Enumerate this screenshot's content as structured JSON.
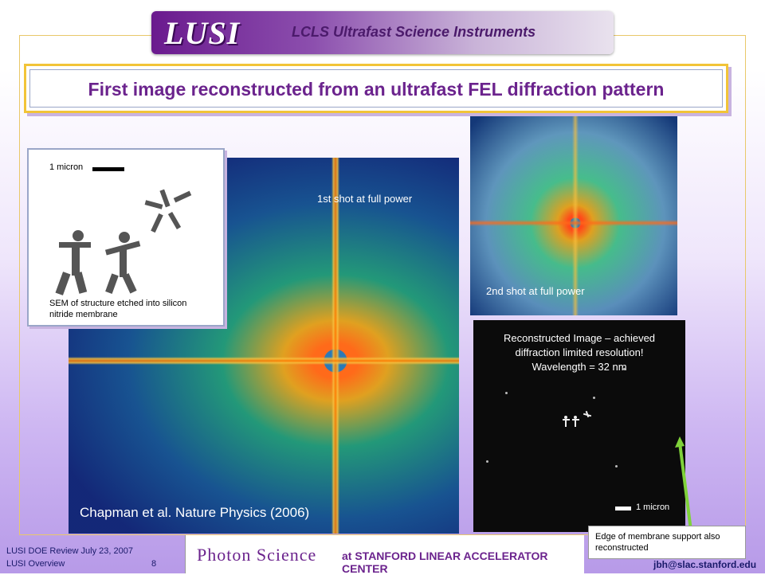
{
  "banner": {
    "logo": "LUSI",
    "subtitle": "LCLS Ultrafast Science Instruments"
  },
  "title": "First image reconstructed from an ultrafast FEL diffraction pattern",
  "main_image": {
    "caption_top": "1st shot at full power",
    "citation": "Chapman et al. Nature Physics (2006)"
  },
  "sem_inset": {
    "scale_label": "1 micron",
    "caption": "SEM of structure etched into silicon nitride membrane"
  },
  "second_image": {
    "caption": "2nd shot at full power"
  },
  "reconstructed_image": {
    "caption_line1": "Reconstructed Image – achieved",
    "caption_line2": "diffraction limited resolution!",
    "caption_line3": "Wavelength = 32 nm",
    "scale_label": "1 micron"
  },
  "edge_note": "Edge of membrane support also reconstructed",
  "footer": {
    "review_line1": "LUSI DOE Review  July 23, 2007",
    "review_line2": "LUSI Overview",
    "page_number": "8",
    "org_name": "Photon Science",
    "org_suffix": "at STANFORD LINEAR ACCELERATOR CENTER",
    "email": "jbh@slac.stanford.edu"
  },
  "colors": {
    "title_text": "#6b238d",
    "title_border": "#f2c438",
    "banner_purple": "#6a1a8e",
    "arrow_green": "#7fd23a"
  }
}
